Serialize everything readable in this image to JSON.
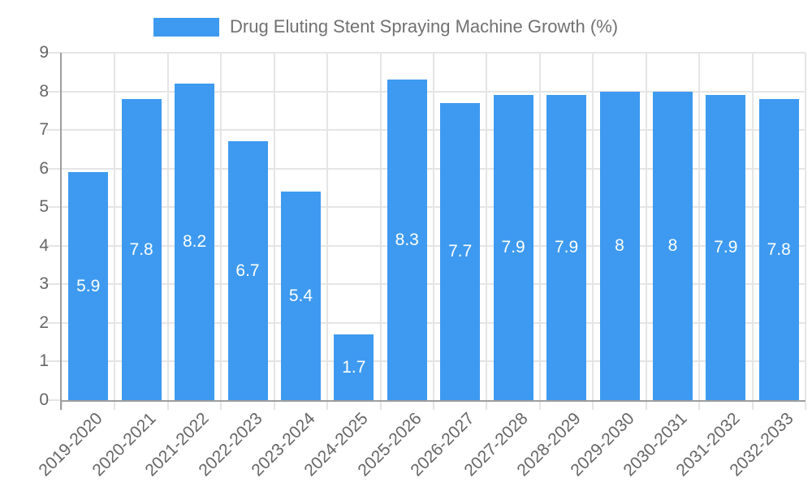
{
  "chart_data": {
    "type": "bar",
    "title": "Drug Eluting Stent Spraying Machine Growth (%)",
    "categories": [
      "2019-2020",
      "2020-2021",
      "2021-2022",
      "2022-2023",
      "2023-2024",
      "2024-2025",
      "2025-2026",
      "2026-2027",
      "2027-2028",
      "2028-2029",
      "2029-2030",
      "2030-2031",
      "2031-2032",
      "2032-2033"
    ],
    "values": [
      5.9,
      7.8,
      8.2,
      6.7,
      5.4,
      1.7,
      8.3,
      7.7,
      7.9,
      7.9,
      8,
      8,
      7.9,
      7.8
    ],
    "xlabel": "",
    "ylabel": "",
    "ylim": [
      0,
      9
    ],
    "yticks": [
      0,
      1,
      2,
      3,
      4,
      5,
      6,
      7,
      8,
      9
    ],
    "grid": true,
    "legend_position": "top",
    "value_labels": "inside-center",
    "colors": {
      "bar": "#3d9af0",
      "grid": "#e5e5e5",
      "axis": "#9e9e9e",
      "tick_text": "#666666",
      "title_text": "#717171",
      "bar_label_text": "#ffffff"
    }
  }
}
